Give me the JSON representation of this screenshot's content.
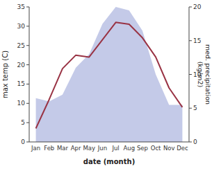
{
  "chart_data": {
    "type": "line",
    "categories": [
      "Jan",
      "Feb",
      "Mar",
      "Apr",
      "May",
      "Jun",
      "Jul",
      "Aug",
      "Sep",
      "Oct",
      "Nov",
      "Dec"
    ],
    "xlabel": "date (month)",
    "ylabel": "max temp (C)",
    "y2label": "med. precipitation\n(kg/m2)",
    "ylim": [
      0,
      35
    ],
    "yticks": [
      0,
      5,
      10,
      15,
      20,
      25,
      30,
      35
    ],
    "y2lim": [
      0,
      20
    ],
    "y2ticks": [
      0,
      5,
      10,
      15,
      20
    ],
    "grid": false,
    "series": [
      {
        "type": "area",
        "axis": "y2",
        "color": "#b0b8e0",
        "values": [
          6.5,
          6.0,
          7.0,
          11.0,
          13.0,
          17.5,
          20.0,
          19.5,
          16.5,
          10.0,
          5.5,
          5.5
        ]
      },
      {
        "type": "line",
        "color": "#993344",
        "values": [
          3.5,
          11.0,
          19.0,
          22.5,
          22.0,
          26.5,
          31.0,
          30.5,
          27.0,
          22.0,
          14.0,
          9.0
        ]
      }
    ]
  }
}
